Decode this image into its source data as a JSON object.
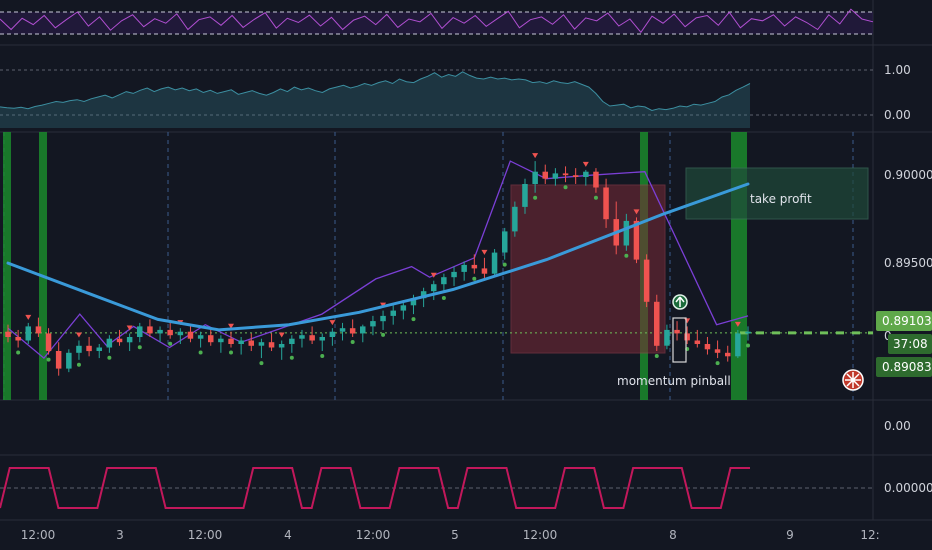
{
  "colors": {
    "background": "#131722",
    "bull": "#26a69a",
    "bear": "#ef5350",
    "ma": "#3a9ad9",
    "zigzag": "#7b3fd6",
    "rsi": "#b04fd1",
    "wave": "#3c8fa1",
    "osc": "#c2185b",
    "signal_bar": "#1b8a2c",
    "price_tag": "#5fa84a"
  },
  "chart_data": [
    {
      "type": "line",
      "panel": "rsi",
      "values": [
        0.6,
        0.3,
        0.62,
        0.44,
        0.7,
        0.35,
        0.58,
        0.8,
        0.4,
        0.66,
        0.28,
        0.55,
        0.72,
        0.38,
        0.61,
        0.48,
        0.75,
        0.3,
        0.58,
        0.66,
        0.42,
        0.7,
        0.36,
        0.59,
        0.78,
        0.34,
        0.62,
        0.5,
        0.71,
        0.4,
        0.65,
        0.3,
        0.57,
        0.68,
        0.44,
        0.73,
        0.36,
        0.6,
        0.52,
        0.76,
        0.33,
        0.64,
        0.48,
        0.7,
        0.39,
        0.61,
        0.82,
        0.35,
        0.58,
        0.66,
        0.45,
        0.72,
        0.31,
        0.63,
        0.55,
        0.77,
        0.4,
        0.6,
        0.22,
        0.68,
        0.48,
        0.74,
        0.38,
        0.63,
        0.7,
        0.42,
        0.79,
        0.35,
        0.61,
        0.55,
        0.72,
        0.4,
        0.66,
        0.5,
        0.3,
        0.72,
        0.46,
        0.88,
        0.6,
        0.52
      ],
      "bands": [
        0.7,
        0.3
      ]
    },
    {
      "type": "area",
      "panel": "wave",
      "values": [
        0.18,
        0.16,
        0.15,
        0.17,
        0.14,
        0.19,
        0.22,
        0.26,
        0.3,
        0.28,
        0.32,
        0.34,
        0.3,
        0.36,
        0.4,
        0.44,
        0.38,
        0.45,
        0.52,
        0.48,
        0.55,
        0.6,
        0.52,
        0.58,
        0.62,
        0.56,
        0.6,
        0.54,
        0.58,
        0.5,
        0.55,
        0.48,
        0.52,
        0.56,
        0.46,
        0.5,
        0.54,
        0.48,
        0.44,
        0.5,
        0.58,
        0.52,
        0.62,
        0.56,
        0.6,
        0.54,
        0.5,
        0.58,
        0.62,
        0.66,
        0.6,
        0.64,
        0.7,
        0.66,
        0.72,
        0.76,
        0.7,
        0.8,
        0.74,
        0.72,
        0.8,
        0.86,
        0.94,
        0.84,
        0.9,
        0.86,
        0.96,
        0.88,
        0.82,
        0.8,
        0.84,
        0.8,
        0.82,
        0.78,
        0.8,
        0.78,
        0.72,
        0.74,
        0.7,
        0.76,
        0.72,
        0.7,
        0.74,
        0.68,
        0.62,
        0.48,
        0.3,
        0.2,
        0.22,
        0.24,
        0.16,
        0.2,
        0.18,
        0.1,
        0.14,
        0.12,
        0.15,
        0.2,
        0.18,
        0.24,
        0.22,
        0.26,
        0.3,
        0.4,
        0.45,
        0.55,
        0.62,
        0.7
      ],
      "ticks": [
        1.0,
        0.0
      ],
      "tick_labels": [
        "1.00",
        "0.00"
      ]
    },
    {
      "type": "candlestick",
      "panel": "main",
      "ylim": [
        0.8875,
        0.902
      ],
      "ticks": [
        0.9,
        0.895,
        0.891,
        0.8908
      ],
      "tick_labels": [
        "0.90000",
        "0.89500",
        "0.89103",
        "0.89083"
      ],
      "hidden_partial_label": "0",
      "countdown": "37:08",
      "last_price": 0.89103,
      "dashed_level": 0.89103,
      "ma_points": [
        [
          0,
          0.895
        ],
        [
          18,
          0.8932
        ],
        [
          32,
          0.8918
        ],
        [
          45,
          0.8912
        ],
        [
          60,
          0.8915
        ],
        [
          75,
          0.8922
        ],
        [
          95,
          0.8935
        ],
        [
          115,
          0.8952
        ],
        [
          140,
          0.8978
        ],
        [
          158,
          0.8995
        ]
      ],
      "zigzag": [
        [
          0,
          0.8913
        ],
        [
          8,
          0.8896
        ],
        [
          16,
          0.8921
        ],
        [
          22,
          0.8903
        ],
        [
          28,
          0.8914
        ],
        [
          36,
          0.8902
        ],
        [
          44,
          0.8915
        ],
        [
          52,
          0.8905
        ],
        [
          70,
          0.8921
        ],
        [
          82,
          0.8941
        ],
        [
          90,
          0.8948
        ],
        [
          94,
          0.8942
        ],
        [
          104,
          0.8953
        ],
        [
          112,
          0.9008
        ],
        [
          120,
          0.8998
        ],
        [
          130,
          0.9
        ],
        [
          142,
          0.9002
        ],
        [
          158,
          0.8915
        ],
        [
          165,
          0.892
        ]
      ],
      "candles": [
        [
          0.8911,
          0.8915,
          0.8905,
          0.8908
        ],
        [
          0.8908,
          0.8912,
          0.8902,
          0.8906
        ],
        [
          0.8906,
          0.8916,
          0.8904,
          0.8914
        ],
        [
          0.8914,
          0.8919,
          0.8908,
          0.891
        ],
        [
          0.891,
          0.8913,
          0.8898,
          0.89
        ],
        [
          0.89,
          0.8905,
          0.8886,
          0.889
        ],
        [
          0.889,
          0.8901,
          0.8888,
          0.8899
        ],
        [
          0.8899,
          0.8906,
          0.8895,
          0.8903
        ],
        [
          0.8903,
          0.8908,
          0.8897,
          0.89
        ],
        [
          0.89,
          0.8904,
          0.8896,
          0.8902
        ],
        [
          0.8902,
          0.8909,
          0.8899,
          0.8907
        ],
        [
          0.8907,
          0.8912,
          0.8903,
          0.8905
        ],
        [
          0.8905,
          0.891,
          0.89,
          0.8908
        ],
        [
          0.8908,
          0.8916,
          0.8905,
          0.8914
        ],
        [
          0.8914,
          0.8918,
          0.8908,
          0.891
        ],
        [
          0.891,
          0.8914,
          0.8905,
          0.8912
        ],
        [
          0.8912,
          0.8917,
          0.8907,
          0.8909
        ],
        [
          0.8909,
          0.8913,
          0.8904,
          0.8911
        ],
        [
          0.8911,
          0.8915,
          0.8905,
          0.8907
        ],
        [
          0.8907,
          0.8911,
          0.8902,
          0.8909
        ],
        [
          0.8909,
          0.8913,
          0.8903,
          0.8905
        ],
        [
          0.8905,
          0.8909,
          0.8899,
          0.8907
        ],
        [
          0.8907,
          0.8911,
          0.8902,
          0.8904
        ],
        [
          0.8904,
          0.8908,
          0.8898,
          0.8906
        ],
        [
          0.8906,
          0.891,
          0.89,
          0.8903
        ],
        [
          0.8903,
          0.8907,
          0.8896,
          0.8905
        ],
        [
          0.8905,
          0.891,
          0.89,
          0.8902
        ],
        [
          0.8902,
          0.8906,
          0.8895,
          0.8904
        ],
        [
          0.8904,
          0.8909,
          0.8899,
          0.8907
        ],
        [
          0.8907,
          0.8912,
          0.8902,
          0.8909
        ],
        [
          0.8909,
          0.8914,
          0.8904,
          0.8906
        ],
        [
          0.8906,
          0.891,
          0.89,
          0.8908
        ],
        [
          0.8908,
          0.8913,
          0.8903,
          0.8911
        ],
        [
          0.8911,
          0.8916,
          0.8906,
          0.8913
        ],
        [
          0.8913,
          0.8918,
          0.8908,
          0.891
        ],
        [
          0.891,
          0.8915,
          0.8905,
          0.8914
        ],
        [
          0.8914,
          0.892,
          0.8909,
          0.8917
        ],
        [
          0.8917,
          0.8923,
          0.8912,
          0.892
        ],
        [
          0.892,
          0.8926,
          0.8915,
          0.8923
        ],
        [
          0.8923,
          0.8929,
          0.8918,
          0.8926
        ],
        [
          0.8926,
          0.8932,
          0.8921,
          0.893
        ],
        [
          0.893,
          0.8936,
          0.8925,
          0.8934
        ],
        [
          0.8934,
          0.894,
          0.8929,
          0.8938
        ],
        [
          0.8938,
          0.8944,
          0.8933,
          0.8942
        ],
        [
          0.8942,
          0.8948,
          0.8937,
          0.8945
        ],
        [
          0.8945,
          0.8951,
          0.894,
          0.8949
        ],
        [
          0.8949,
          0.8955,
          0.8944,
          0.8947
        ],
        [
          0.8947,
          0.8953,
          0.894,
          0.8944
        ],
        [
          0.8944,
          0.8958,
          0.8942,
          0.8956
        ],
        [
          0.8956,
          0.897,
          0.8952,
          0.8968
        ],
        [
          0.8968,
          0.8985,
          0.8965,
          0.8982
        ],
        [
          0.8982,
          0.8998,
          0.8978,
          0.8995
        ],
        [
          0.8995,
          0.9008,
          0.899,
          0.9002
        ],
        [
          0.9002,
          0.9006,
          0.8995,
          0.8998
        ],
        [
          0.8998,
          0.9004,
          0.8994,
          0.9001
        ],
        [
          0.9001,
          0.9005,
          0.8996,
          0.9
        ],
        [
          0.9,
          0.9004,
          0.8995,
          0.8999
        ],
        [
          0.8999,
          0.9003,
          0.8994,
          0.9002
        ],
        [
          0.9002,
          0.9004,
          0.899,
          0.8993
        ],
        [
          0.8993,
          0.8998,
          0.897,
          0.8975
        ],
        [
          0.8975,
          0.8985,
          0.8955,
          0.896
        ],
        [
          0.896,
          0.8978,
          0.8957,
          0.8974
        ],
        [
          0.8974,
          0.8976,
          0.895,
          0.8952
        ],
        [
          0.8952,
          0.8955,
          0.8925,
          0.8928
        ],
        [
          0.8928,
          0.8932,
          0.89,
          0.8903
        ],
        [
          0.8903,
          0.8915,
          0.8901,
          0.8912
        ],
        [
          0.8912,
          0.8917,
          0.8906,
          0.891
        ],
        [
          0.891,
          0.8914,
          0.8904,
          0.8906
        ],
        [
          0.8906,
          0.8912,
          0.8902,
          0.8904
        ],
        [
          0.8904,
          0.8908,
          0.8898,
          0.8901
        ],
        [
          0.8901,
          0.8906,
          0.8896,
          0.8899
        ],
        [
          0.8899,
          0.8903,
          0.8894,
          0.8897
        ],
        [
          0.8897,
          0.8912,
          0.8896,
          0.891
        ],
        [
          0.891,
          0.8914,
          0.8906,
          0.8911
        ]
      ],
      "x_labels": [
        "12:00",
        "3",
        "12:00",
        "4",
        "12:00",
        "5",
        "12:00",
        "8",
        "9",
        "12:"
      ]
    },
    {
      "type": "line",
      "panel": "blank",
      "ticks": [
        0.0
      ],
      "tick_labels": [
        "0.00"
      ]
    },
    {
      "type": "line",
      "panel": "oscillator",
      "values": [
        0,
        1,
        1,
        1,
        1,
        1,
        0,
        0,
        0,
        0,
        0,
        1,
        1,
        1,
        1,
        1,
        1,
        0,
        0,
        0,
        0,
        0,
        0,
        0,
        0,
        0,
        1,
        1,
        1,
        1,
        1,
        0,
        0,
        1,
        1,
        1,
        1,
        0,
        0,
        0,
        0,
        1,
        1,
        1,
        1,
        1,
        0,
        0,
        1,
        1,
        1,
        1,
        1,
        0,
        0,
        0,
        0,
        0,
        1,
        1,
        1,
        1,
        0,
        0,
        0,
        1,
        1,
        1,
        1,
        1,
        1,
        0,
        0,
        0,
        0,
        1,
        1,
        1
      ],
      "ticks": [
        0.0
      ],
      "tick_labels": [
        "0.00000"
      ]
    }
  ],
  "annotations": {
    "take_profit": "take profit",
    "momentum": "momentum pinball"
  }
}
